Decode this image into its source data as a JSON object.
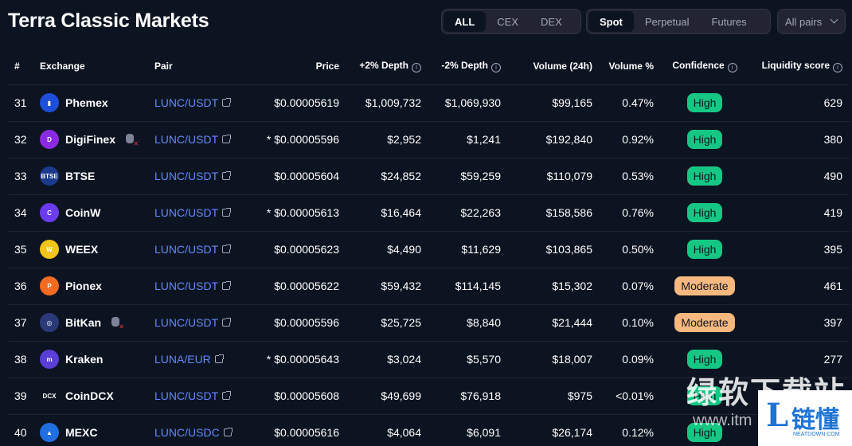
{
  "title": "Terra Classic Markets",
  "filters": {
    "type": [
      "ALL",
      "CEX",
      "DEX"
    ],
    "type_active": "ALL",
    "market": [
      "Spot",
      "Perpetual",
      "Futures"
    ],
    "market_active": "Spot",
    "pairs": "All pairs"
  },
  "columns": {
    "rank": "#",
    "exchange": "Exchange",
    "pair": "Pair",
    "price": "Price",
    "depth_plus": "+2% Depth",
    "depth_minus": "-2% Depth",
    "volume": "Volume (24h)",
    "volume_pct": "Volume %",
    "confidence": "Confidence",
    "liquidity": "Liquidity score"
  },
  "rows": [
    {
      "rank": "31",
      "exchange": "Phemex",
      "logo_color": "#1e4fd8",
      "logo_text": "▮",
      "warning": false,
      "pair": "LUNC/USDT",
      "price": "$0.00005619",
      "depth_plus": "$1,009,732",
      "depth_minus": "$1,069,930",
      "volume": "$99,165",
      "volume_pct": "0.47%",
      "confidence": "High",
      "liquidity": "629"
    },
    {
      "rank": "32",
      "exchange": "DigiFinex",
      "logo_color": "#8a2be2",
      "logo_text": "D",
      "warning": true,
      "pair": "LUNC/USDT",
      "price": "* $0.00005596",
      "depth_plus": "$2,952",
      "depth_minus": "$1,241",
      "volume": "$192,840",
      "volume_pct": "0.92%",
      "confidence": "High",
      "liquidity": "380"
    },
    {
      "rank": "33",
      "exchange": "BTSE",
      "logo_color": "#1b3a8c",
      "logo_text": "BTSE",
      "warning": false,
      "pair": "LUNC/USDT",
      "price": "$0.00005604",
      "depth_plus": "$24,852",
      "depth_minus": "$59,259",
      "volume": "$110,079",
      "volume_pct": "0.53%",
      "confidence": "High",
      "liquidity": "490"
    },
    {
      "rank": "34",
      "exchange": "CoinW",
      "logo_color": "#6b3bf0",
      "logo_text": "C",
      "warning": false,
      "pair": "LUNC/USDT",
      "price": "* $0.00005613",
      "depth_plus": "$16,464",
      "depth_minus": "$22,263",
      "volume": "$158,586",
      "volume_pct": "0.76%",
      "confidence": "High",
      "liquidity": "419"
    },
    {
      "rank": "35",
      "exchange": "WEEX",
      "logo_color": "#f0c419",
      "logo_text": "W",
      "warning": false,
      "pair": "LUNC/USDT",
      "price": "$0.00005623",
      "depth_plus": "$4,490",
      "depth_minus": "$11,629",
      "volume": "$103,865",
      "volume_pct": "0.50%",
      "confidence": "High",
      "liquidity": "395"
    },
    {
      "rank": "36",
      "exchange": "Pionex",
      "logo_color": "#f26b21",
      "logo_text": "P",
      "warning": false,
      "pair": "LUNC/USDT",
      "price": "$0.00005622",
      "depth_plus": "$59,432",
      "depth_minus": "$114,145",
      "volume": "$15,302",
      "volume_pct": "0.07%",
      "confidence": "Moderate",
      "liquidity": "461"
    },
    {
      "rank": "37",
      "exchange": "BitKan",
      "logo_color": "#2a3a78",
      "logo_text": "◎",
      "warning": true,
      "pair": "LUNC/USDT",
      "price": "$0.00005596",
      "depth_plus": "$25,725",
      "depth_minus": "$8,840",
      "volume": "$21,444",
      "volume_pct": "0.10%",
      "confidence": "Moderate",
      "liquidity": "397"
    },
    {
      "rank": "38",
      "exchange": "Kraken",
      "logo_color": "#5a3fd6",
      "logo_text": "m",
      "warning": false,
      "pair": "LUNA/EUR",
      "price": "* $0.00005643",
      "depth_plus": "$3,024",
      "depth_minus": "$5,570",
      "volume": "$18,007",
      "volume_pct": "0.09%",
      "confidence": "High",
      "liquidity": "277"
    },
    {
      "rank": "39",
      "exchange": "CoinDCX",
      "logo_color": "#0d1421",
      "logo_text": "DCX",
      "warning": false,
      "pair": "LUNC/USDT",
      "price": "$0.00005608",
      "depth_plus": "$49,699",
      "depth_minus": "$76,918",
      "volume": "$975",
      "volume_pct": "<0.01%",
      "confidence": "High",
      "liquidity": ""
    },
    {
      "rank": "40",
      "exchange": "MEXC",
      "logo_color": "#1f6fe0",
      "logo_text": "▲",
      "warning": false,
      "pair": "LUNC/USDC",
      "price": "$0.00005616",
      "depth_plus": "$4,064",
      "depth_minus": "$6,091",
      "volume": "$26,174",
      "volume_pct": "0.12%",
      "confidence": "High",
      "liquidity": ""
    }
  ],
  "watermark": {
    "cn_text": "绿软下载站",
    "url_text": "www.itm",
    "logo_letter": "L",
    "logo_text": "链懂",
    "logo_url": "NEATDOWN.COM"
  }
}
